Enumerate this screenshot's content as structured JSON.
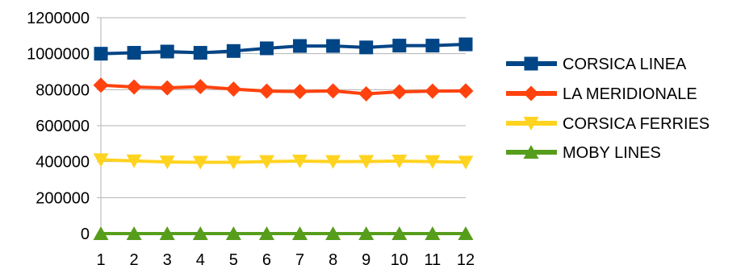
{
  "chart_data": {
    "type": "line",
    "title": "",
    "xlabel": "",
    "ylabel": "",
    "x": [
      1,
      2,
      3,
      4,
      5,
      6,
      7,
      8,
      9,
      10,
      11,
      12
    ],
    "x_tick_labels": [
      "1",
      "2",
      "3",
      "4",
      "5",
      "6",
      "7",
      "8",
      "9",
      "10",
      "11",
      "12"
    ],
    "ylim": [
      0,
      1200000
    ],
    "y_ticks": [
      0,
      200000,
      400000,
      600000,
      800000,
      1000000,
      1200000
    ],
    "y_tick_labels": [
      "0",
      "200000",
      "400000",
      "600000",
      "800000",
      "1000000",
      "1200000"
    ],
    "grid": "horizontal",
    "legend_position": "right",
    "series": [
      {
        "name": "CORSICA LINEA",
        "color": "#004586",
        "marker": "square",
        "values": [
          1000000,
          1005000,
          1012000,
          1005000,
          1015000,
          1030000,
          1043000,
          1043000,
          1035000,
          1045000,
          1045000,
          1052000
        ]
      },
      {
        "name": "LA MERIDIONALE",
        "color": "#ff420e",
        "marker": "diamond",
        "values": [
          825000,
          815000,
          810000,
          817000,
          803000,
          792000,
          790000,
          793000,
          777000,
          788000,
          792000,
          793000
        ]
      },
      {
        "name": "CORSICA FERRIES",
        "color": "#ffd320",
        "marker": "triangle-down",
        "values": [
          410000,
          404000,
          398000,
          396000,
          396000,
          400000,
          403000,
          400000,
          401000,
          403000,
          400000,
          397000
        ]
      },
      {
        "name": "MOBY LINES",
        "color": "#579d1c",
        "marker": "triangle-up",
        "values": [
          0,
          0,
          0,
          0,
          0,
          0,
          0,
          0,
          0,
          0,
          0,
          0
        ]
      }
    ]
  }
}
